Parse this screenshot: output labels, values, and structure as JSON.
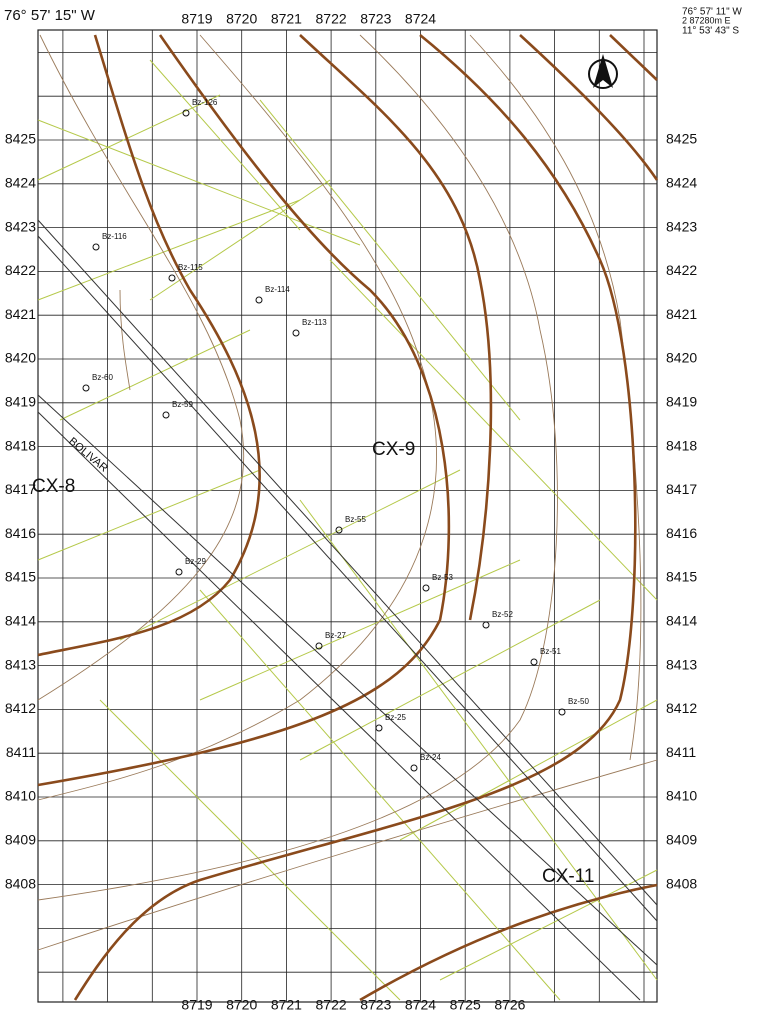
{
  "header": {
    "left_coord": "76° 57' 15\" W",
    "right_coord": "76° 57' 11\" W",
    "right_easting": "2 87280m E",
    "right_lat": "11° 53' 43\" S"
  },
  "grid": {
    "top_labels": [
      "8719",
      "8720",
      "8721",
      "8722",
      "8723",
      "8724"
    ],
    "bottom_labels": [
      "8719",
      "8720",
      "8721",
      "8722",
      "8723",
      "8724",
      "8725",
      "8726"
    ],
    "side_labels": [
      "8425",
      "8424",
      "8423",
      "8422",
      "8421",
      "8420",
      "8419",
      "8418",
      "8417",
      "8416",
      "8415",
      "8414",
      "8413",
      "8412",
      "8411",
      "8410",
      "8409",
      "8408"
    ]
  },
  "places": [
    "CX-8",
    "CX-9",
    "CX-11"
  ],
  "points": [
    "Bz-59",
    "Bz-60",
    "Bz-55",
    "Bz-53",
    "Bz-52",
    "Bz-51",
    "Bz-50",
    "Bz-29",
    "Bz-27",
    "Bz-25",
    "Bz-24",
    "Bz-113",
    "Bz-114",
    "Bz-115",
    "Bz-116",
    "Bz-126"
  ],
  "road_name": "BOLIVAR"
}
